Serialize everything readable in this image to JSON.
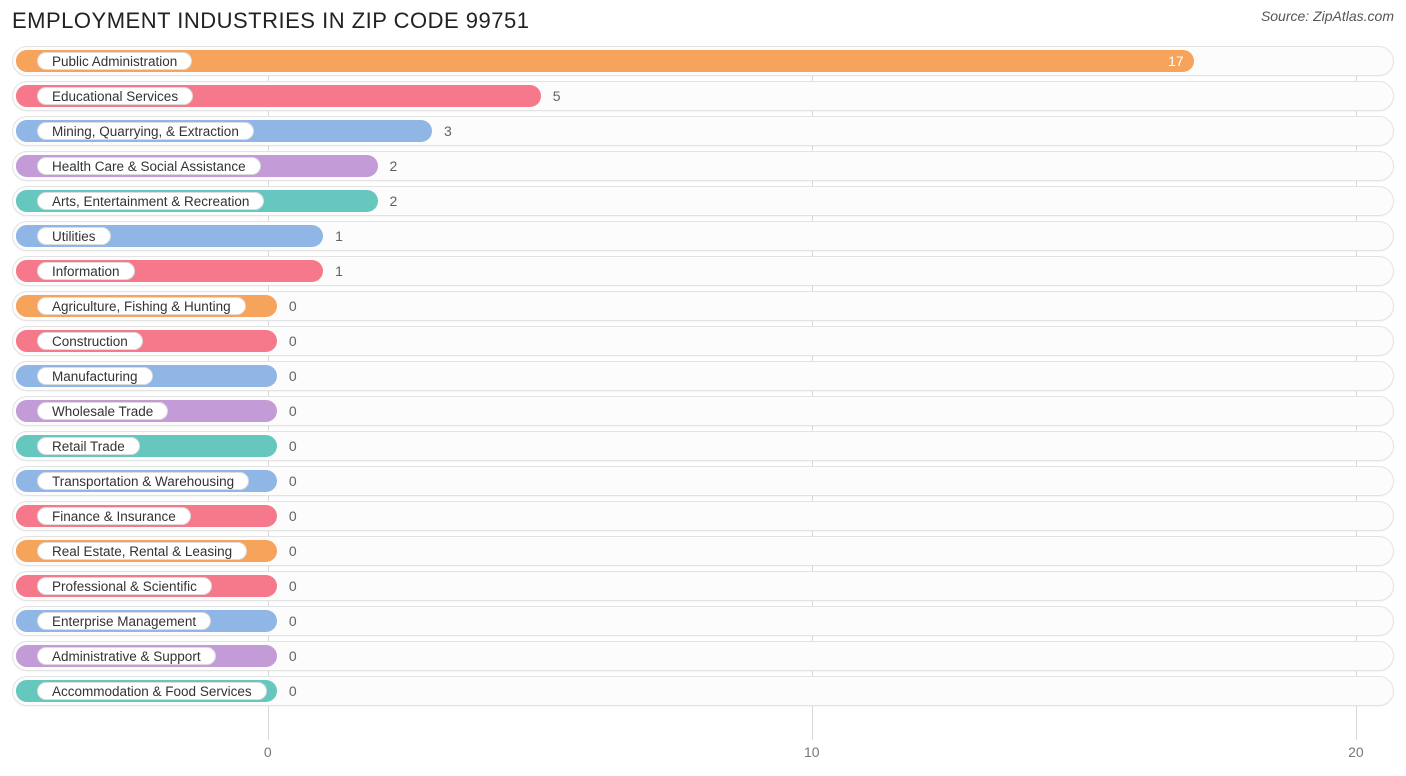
{
  "title": "EMPLOYMENT INDUSTRIES IN ZIP CODE 99751",
  "source": "Source: ZipAtlas.com",
  "chart": {
    "type": "bar-horizontal",
    "x_min": -4.7,
    "x_max": 20.7,
    "x_ticks": [
      0,
      10,
      20
    ],
    "track_bg": "#fcfcfc",
    "track_border": "#e3e3e3",
    "grid_color": "#d9d9d9",
    "value_text_color_outside": "#626262",
    "value_text_color_inside": "#ffffff",
    "label_text_color": "#333333",
    "title_color": "#222222",
    "source_color": "#555555",
    "colors": [
      "#f6a35b",
      "#f6798b",
      "#8fb6e4",
      "#c39bd7",
      "#66c7be"
    ],
    "min_bar_x": 0.15,
    "rows": [
      {
        "label": "Public Administration",
        "value": 17,
        "color_idx": 0,
        "value_inside": true
      },
      {
        "label": "Educational Services",
        "value": 5,
        "color_idx": 1,
        "value_inside": false
      },
      {
        "label": "Mining, Quarrying, & Extraction",
        "value": 3,
        "color_idx": 2,
        "value_inside": false
      },
      {
        "label": "Health Care & Social Assistance",
        "value": 2,
        "color_idx": 3,
        "value_inside": false
      },
      {
        "label": "Arts, Entertainment & Recreation",
        "value": 2,
        "color_idx": 4,
        "value_inside": false
      },
      {
        "label": "Utilities",
        "value": 1,
        "color_idx": 2,
        "value_inside": false
      },
      {
        "label": "Information",
        "value": 1,
        "color_idx": 1,
        "value_inside": false
      },
      {
        "label": "Agriculture, Fishing & Hunting",
        "value": 0,
        "color_idx": 0,
        "value_inside": false
      },
      {
        "label": "Construction",
        "value": 0,
        "color_idx": 1,
        "value_inside": false
      },
      {
        "label": "Manufacturing",
        "value": 0,
        "color_idx": 2,
        "value_inside": false
      },
      {
        "label": "Wholesale Trade",
        "value": 0,
        "color_idx": 3,
        "value_inside": false
      },
      {
        "label": "Retail Trade",
        "value": 0,
        "color_idx": 4,
        "value_inside": false
      },
      {
        "label": "Transportation & Warehousing",
        "value": 0,
        "color_idx": 2,
        "value_inside": false
      },
      {
        "label": "Finance & Insurance",
        "value": 0,
        "color_idx": 1,
        "value_inside": false
      },
      {
        "label": "Real Estate, Rental & Leasing",
        "value": 0,
        "color_idx": 0,
        "value_inside": false
      },
      {
        "label": "Professional & Scientific",
        "value": 0,
        "color_idx": 1,
        "value_inside": false
      },
      {
        "label": "Enterprise Management",
        "value": 0,
        "color_idx": 2,
        "value_inside": false
      },
      {
        "label": "Administrative & Support",
        "value": 0,
        "color_idx": 3,
        "value_inside": false
      },
      {
        "label": "Accommodation & Food Services",
        "value": 0,
        "color_idx": 4,
        "value_inside": false
      }
    ]
  }
}
